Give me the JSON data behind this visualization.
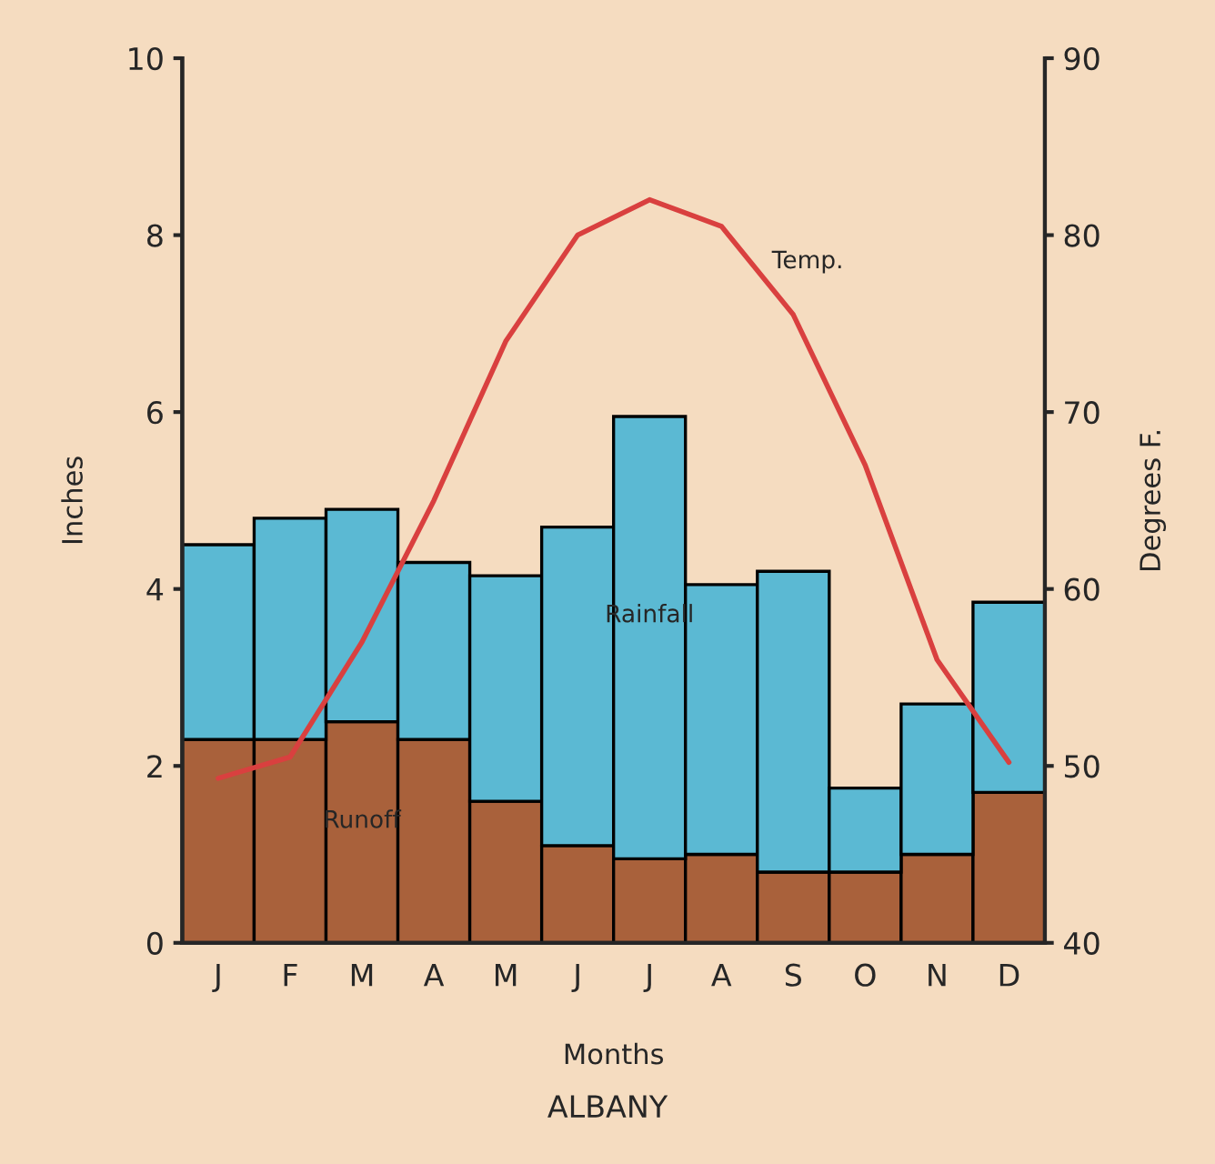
{
  "chart_data": {
    "type": "bar",
    "title": "ALBANY",
    "xlabel": "Months",
    "ylabel": "Inches",
    "y2label": "Degrees F.",
    "categories": [
      "J",
      "F",
      "M",
      "A",
      "M",
      "J",
      "J",
      "A",
      "S",
      "O",
      "N",
      "D"
    ],
    "stacked": true,
    "series": [
      {
        "name": "Runoff",
        "color": "#a9613b",
        "values": [
          2.3,
          2.3,
          2.5,
          2.3,
          1.6,
          1.1,
          0.95,
          1.0,
          0.8,
          0.8,
          1.0,
          1.7
        ]
      },
      {
        "name": "Rainfall",
        "color": "#5bb9d3",
        "values": [
          2.2,
          2.5,
          2.4,
          2.0,
          2.55,
          3.6,
          5.0,
          3.05,
          3.4,
          0.95,
          1.7,
          2.15
        ]
      },
      {
        "name": "Temp.",
        "type": "line",
        "axis": "y2",
        "color": "#d9403f",
        "values": [
          49.3,
          50.5,
          57,
          65,
          74,
          80,
          82,
          80.5,
          75.5,
          67,
          56,
          50.2
        ]
      }
    ],
    "ylim": [
      0,
      10
    ],
    "yticks": [
      0,
      2,
      4,
      6,
      8,
      10
    ],
    "y2lim": [
      40,
      90
    ],
    "y2ticks": [
      40,
      50,
      60,
      70,
      80,
      90
    ],
    "grid": false,
    "legend": false
  }
}
